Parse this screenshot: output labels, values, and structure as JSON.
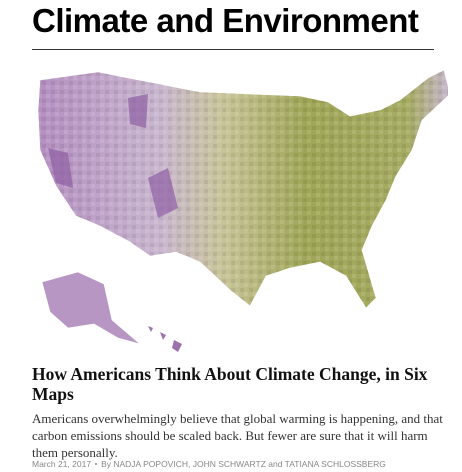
{
  "header": {
    "title": "Climate and Environment"
  },
  "article": {
    "headline": "How Americans Think About Climate Change, in Six Maps",
    "summary": "Americans overwhelmingly believe that global warming is happening, and that carbon emissions should be scaled back. But fewer are sure that it will harm them personally.",
    "date": "March 21, 2017",
    "byline": "By NADJA POPOVICH, JOHN SCHWARTZ and TATIANA SCHLOSSBERG"
  }
}
